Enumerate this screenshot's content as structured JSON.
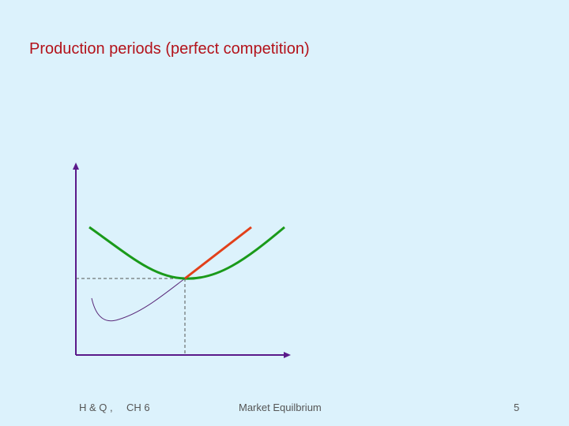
{
  "title": "Production periods (perfect competition)",
  "footer": {
    "left": "H & Q ,",
    "chapter": "CH 6",
    "center": "Market Equilbrium",
    "page": "5"
  }
}
